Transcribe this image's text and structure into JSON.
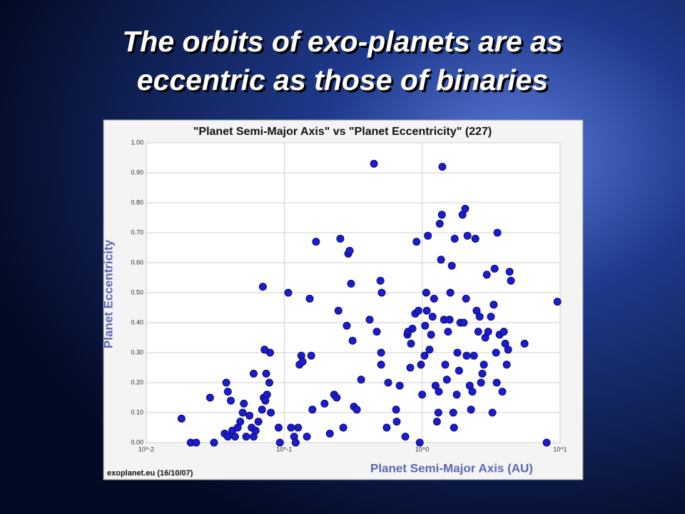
{
  "slide": {
    "title": [
      "The orbits of exo-planets are as",
      "eccentric as those of binaries"
    ]
  },
  "chart_data": {
    "type": "scatter",
    "title": "\"Planet Semi-Major Axis\"  vs \"Planet Eccentricity\" (227)",
    "xlabel": "Planet Semi-Major Axis (AU)",
    "ylabel": "Planet Eccentricity",
    "source": "exoplanet.eu (16/10/07)",
    "xscale": "log",
    "grid": true,
    "color": "#1c1ccf",
    "xlim": [
      0.01,
      10
    ],
    "ylim": [
      0,
      1
    ],
    "xticks": [
      {
        "value": 0.01,
        "label": "10^-2"
      },
      {
        "value": 0.1,
        "label": "10^-1"
      },
      {
        "value": 1,
        "label": "10^0"
      },
      {
        "value": 10,
        "label": "10^1"
      }
    ],
    "yticks": [
      {
        "value": 0,
        "label": "0.00"
      },
      {
        "value": 0.1,
        "label": "0.10"
      },
      {
        "value": 0.2,
        "label": "0.20"
      },
      {
        "value": 0.3,
        "label": "0.30"
      },
      {
        "value": 0.4,
        "label": "0.40"
      },
      {
        "value": 0.5,
        "label": "0.50"
      },
      {
        "value": 0.6,
        "label": "0.60"
      },
      {
        "value": 0.7,
        "label": "0.70"
      },
      {
        "value": 0.8,
        "label": "0.80"
      },
      {
        "value": 0.9,
        "label": "0.90"
      },
      {
        "value": 1,
        "label": "1.00"
      }
    ],
    "x": [
      0.018,
      0.021,
      0.023,
      0.029,
      0.031,
      0.038,
      0.039,
      0.041,
      0.037,
      0.039,
      0.042,
      0.044,
      0.046,
      0.048,
      0.05,
      0.051,
      0.053,
      0.056,
      0.058,
      0.06,
      0.062,
      0.065,
      0.069,
      0.071,
      0.075,
      0.078,
      0.08,
      0.073,
      0.074,
      0.079,
      0.072,
      0.07,
      0.06,
      0.091,
      0.093,
      0.107,
      0.112,
      0.118,
      0.121,
      0.126,
      0.129,
      0.133,
      0.136,
      0.146,
      0.157,
      0.153,
      0.17,
      0.16,
      0.196,
      0.214,
      0.23,
      0.24,
      0.247,
      0.255,
      0.268,
      0.284,
      0.291,
      0.298,
      0.305,
      0.313,
      0.32,
      0.336,
      0.361,
      0.416,
      0.447,
      0.469,
      0.498,
      0.504,
      0.504,
      0.509,
      0.553,
      0.567,
      0.647,
      0.654,
      0.687,
      0.755,
      0.782,
      0.79,
      0.82,
      0.83,
      0.85,
      0.89,
      0.91,
      0.94,
      0.96,
      0.98,
      1.0,
      1.04,
      1.05,
      1.07,
      1.08,
      1.1,
      1.13,
      1.16,
      1.19,
      1.22,
      1.25,
      1.28,
      1.31,
      1.32,
      1.34,
      1.37,
      1.39,
      1.4,
      1.44,
      1.47,
      1.51,
      1.54,
      1.58,
      1.6,
      1.64,
      1.68,
      1.7,
      1.72,
      1.78,
      1.8,
      1.85,
      1.89,
      1.96,
      2.0,
      2.05,
      2.08,
      2.1,
      2.13,
      2.21,
      2.26,
      2.31,
      2.37,
      2.43,
      2.48,
      2.55,
      2.61,
      2.67,
      2.73,
      2.8,
      2.87,
      2.94,
      3.01,
      3.15,
      3.23,
      3.3,
      3.35,
      3.43,
      3.47,
      3.51,
      3.64,
      3.81,
      3.91,
      4.0,
      4.1,
      4.2,
      4.3,
      4.4,
      5.52,
      7.98,
      9.55
    ],
    "values": [
      0.08,
      0,
      0,
      0.15,
      0,
      0.2,
      0.17,
      0.14,
      0.03,
      0.02,
      0.04,
      0.02,
      0.05,
      0.07,
      0.1,
      0.13,
      0.02,
      0.09,
      0.05,
      0.02,
      0.04,
      0.07,
      0.11,
      0.15,
      0.16,
      0.2,
      0.1,
      0.14,
      0.23,
      0.3,
      0.31,
      0.52,
      0.23,
      0.05,
      0,
      0.5,
      0.05,
      0.02,
      0,
      0.05,
      0.26,
      0.29,
      0.27,
      0.02,
      0.29,
      0.48,
      0.67,
      0.11,
      0.13,
      0.03,
      0.16,
      0.15,
      0.44,
      0.68,
      0.05,
      0.39,
      0.63,
      0.64,
      0.53,
      0.34,
      0.12,
      0.11,
      0.21,
      0.41,
      0.93,
      0.37,
      0.54,
      0.3,
      0.26,
      0.5,
      0.05,
      0.2,
      0.11,
      0.07,
      0.19,
      0.02,
      0.36,
      0.37,
      0.25,
      0.33,
      0.38,
      0.43,
      0.67,
      0.44,
      0,
      0.26,
      0.16,
      0.29,
      0.39,
      0.5,
      0.44,
      0.69,
      0.31,
      0.36,
      0.42,
      0.48,
      0.19,
      0.07,
      0.1,
      0.17,
      0.73,
      0.61,
      0.76,
      0.92,
      0.41,
      0.26,
      0.21,
      0.37,
      0.41,
      0.5,
      0.59,
      0.1,
      0.05,
      0.68,
      0.16,
      0.3,
      0.24,
      0.4,
      0.76,
      0.4,
      0.78,
      0.48,
      0.29,
      0.69,
      0.19,
      0.11,
      0.17,
      0.29,
      0.68,
      0.44,
      0.37,
      0.42,
      0.2,
      0.23,
      0.26,
      0.35,
      0.56,
      0.37,
      0.42,
      0.1,
      0.46,
      0.58,
      0.3,
      0.2,
      0.7,
      0.36,
      0.17,
      0.37,
      0.33,
      0.26,
      0.31,
      0.57,
      0.54,
      0.33,
      0,
      0.47
    ]
  }
}
